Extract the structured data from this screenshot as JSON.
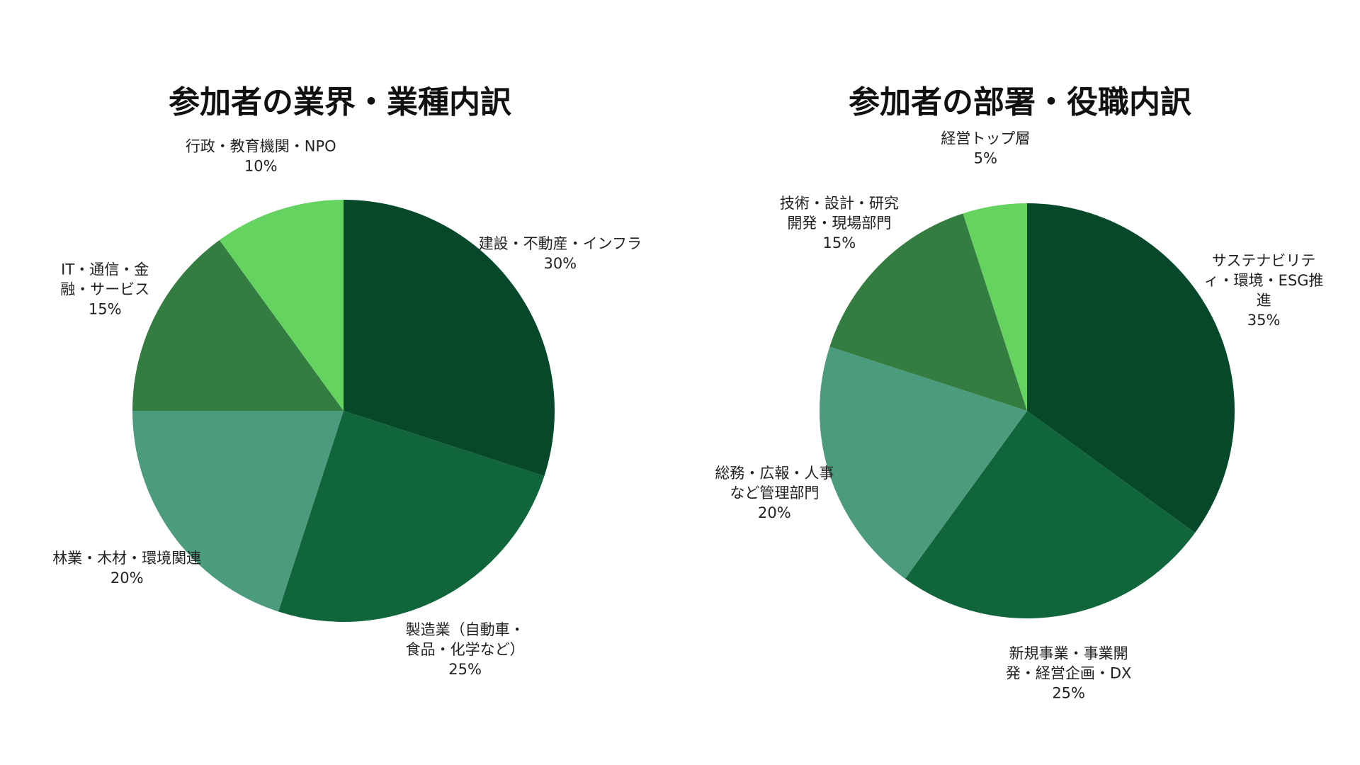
{
  "chart_data": [
    {
      "type": "pie",
      "title": "参加者の業界・業種内訳",
      "slices": [
        {
          "label_lines": [
            "建設・不動産・インフラ"
          ],
          "percent_label": "30%",
          "value": 30,
          "color": "#07482b"
        },
        {
          "label_lines": [
            "製造業（自動車・",
            "食品・化学など）"
          ],
          "percent_label": "25%",
          "value": 25,
          "color": "#10663a"
        },
        {
          "label_lines": [
            "林業・木材・環境関連"
          ],
          "percent_label": "20%",
          "value": 20,
          "color": "#4b9c7c"
        },
        {
          "label_lines": [
            "IT・通信・金",
            "融・サービス"
          ],
          "percent_label": "15%",
          "value": 15,
          "color": "#347d40"
        },
        {
          "label_lines": [
            "行政・教育機関・NPO"
          ],
          "percent_label": "10%",
          "value": 10,
          "color": "#64d35f"
        }
      ]
    },
    {
      "type": "pie",
      "title": "参加者の部署・役職内訳",
      "slices": [
        {
          "label_lines": [
            "サステナビリテ",
            "ィ・環境・ESG推",
            "進"
          ],
          "percent_label": "35%",
          "value": 35,
          "color": "#07482b"
        },
        {
          "label_lines": [
            "新規事業・事業開",
            "発・経営企画・DX"
          ],
          "percent_label": "25%",
          "value": 25,
          "color": "#10663a"
        },
        {
          "label_lines": [
            "総務・広報・人事",
            "など管理部門"
          ],
          "percent_label": "20%",
          "value": 20,
          "color": "#4b9c7c"
        },
        {
          "label_lines": [
            "技術・設計・研究",
            "開発・現場部門"
          ],
          "percent_label": "15%",
          "value": 15,
          "color": "#347d40"
        },
        {
          "label_lines": [
            "経営トップ層"
          ],
          "percent_label": "5%",
          "value": 5,
          "color": "#64d35f"
        }
      ]
    }
  ]
}
